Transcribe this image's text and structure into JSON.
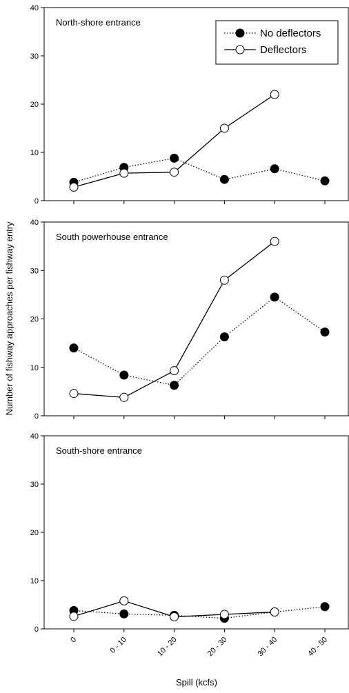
{
  "chart_data": [
    {
      "type": "line",
      "title": "North-shore entrance",
      "series": [
        {
          "name": "No deflectors",
          "color": "#000000",
          "marker": "filled",
          "linestyle": "dotted",
          "values": [
            3.8,
            6.9,
            8.8,
            4.4,
            6.6,
            4.1
          ]
        },
        {
          "name": "Deflectors",
          "color": "#000000",
          "marker": "open",
          "linestyle": "solid",
          "values": [
            2.8,
            5.7,
            5.9,
            15,
            22,
            null
          ]
        }
      ],
      "ylim": [
        0,
        40
      ],
      "yticks": [
        0,
        10,
        20,
        30,
        40
      ],
      "legend": "upper right"
    },
    {
      "type": "line",
      "title": "South powerhouse entrance",
      "ylabel": "Number of fishway approaches per fishway entry",
      "series": [
        {
          "color": "#000000",
          "marker": "filled",
          "linestyle": "dotted",
          "values": [
            14,
            8.4,
            6.3,
            16.3,
            24.5,
            17.3
          ]
        },
        {
          "color": "#000000",
          "marker": "open",
          "linestyle": "solid",
          "values": [
            4.6,
            3.8,
            9.3,
            28,
            36,
            null
          ]
        }
      ],
      "ylim": [
        0,
        40
      ],
      "yticks": [
        0,
        10,
        20,
        30,
        40
      ]
    },
    {
      "type": "line",
      "title": "South-shore entrance",
      "xlabel": "Spill (kcfs)",
      "categories": [
        "0",
        "0 - 10",
        "10 - 20",
        "20 - 30",
        "30 - 40",
        "40 - 50"
      ],
      "series": [
        {
          "color": "#000000",
          "marker": "filled",
          "linestyle": "dotted",
          "values": [
            3.8,
            3.1,
            2.8,
            2.2,
            3.5,
            4.6
          ]
        },
        {
          "color": "#000000",
          "marker": "open",
          "linestyle": "solid",
          "values": [
            2.6,
            5.8,
            2.5,
            3.0,
            3.5,
            null
          ]
        }
      ],
      "ylim": [
        0,
        40
      ],
      "yticks": [
        0,
        10,
        20,
        30,
        40
      ]
    }
  ]
}
